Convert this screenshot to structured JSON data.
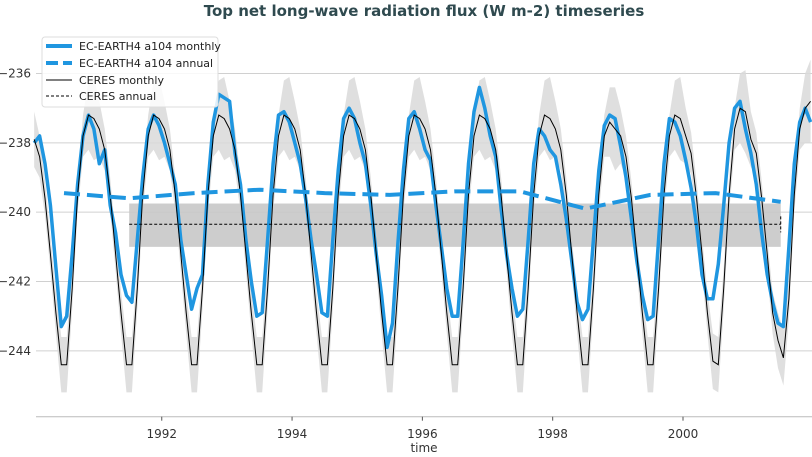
{
  "chart_data": {
    "type": "line",
    "title": "Top net long-wave radiation flux (W m-2) timeseries",
    "xlabel": "time",
    "ylabel": "",
    "xlim": [
      1990.07,
      2001.98
    ],
    "ylim": [
      -245.9,
      -234.6
    ],
    "grid": "horizontal",
    "legend_placement": "top-left",
    "x_ticks": [
      "1992",
      "1994",
      "1996",
      "1998",
      "2000"
    ],
    "y_ticks": [
      "-236",
      "-238",
      "-240",
      "-242",
      "-244"
    ],
    "colors": {
      "ec_earth": "#1f96e0",
      "ceres": "#000000",
      "band": "#d9d9d9",
      "annual_band": "#c8c8c8",
      "title": "#2f4a4f"
    },
    "legend": [
      "EC-EARTH4 a104 monthly",
      "EC-EARTH4 a104 annual",
      "CERES monthly",
      "CERES annual"
    ],
    "start_year": 1990,
    "ec_earth_monthly": [
      [
        -238.0,
        -237.8,
        -238.6,
        -239.8,
        -241.6,
        -243.3,
        -243.0,
        -241.2,
        -239.2,
        -237.8,
        -237.2,
        -237.6
      ],
      [
        -238.6,
        -238.2,
        -239.8,
        -240.6,
        -241.8,
        -242.4,
        -242.6,
        -240.8,
        -239.0,
        -237.6,
        -237.2,
        -237.5
      ],
      [
        -238.0,
        -238.6,
        -239.2,
        -240.8,
        -241.8,
        -242.8,
        -242.2,
        -241.8,
        -239.2,
        -237.4,
        -236.6,
        -236.7
      ],
      [
        -236.8,
        -238.3,
        -239.2,
        -240.8,
        -242.0,
        -243.0,
        -242.9,
        -240.8,
        -238.6,
        -237.2,
        -237.1,
        -237.4
      ],
      [
        -238.0,
        -238.6,
        -239.6,
        -240.8,
        -241.8,
        -242.9,
        -243.0,
        -240.8,
        -238.8,
        -237.3,
        -237.0,
        -237.3
      ],
      [
        -238.0,
        -238.6,
        -239.8,
        -241.2,
        -242.4,
        -243.9,
        -243.2,
        -240.9,
        -238.8,
        -237.3,
        -237.1,
        -237.6
      ],
      [
        -238.2,
        -238.5,
        -239.8,
        -241.0,
        -242.2,
        -243.0,
        -243.0,
        -240.9,
        -238.6,
        -237.1,
        -236.4,
        -237.0
      ],
      [
        -237.8,
        -238.4,
        -239.9,
        -241.2,
        -242.2,
        -243.0,
        -242.8,
        -240.8,
        -238.6,
        -237.6,
        -237.8,
        -238.2
      ],
      [
        -238.4,
        -239.2,
        -240.2,
        -241.4,
        -242.6,
        -243.1,
        -242.8,
        -240.8,
        -238.8,
        -237.5,
        -237.2,
        -237.3
      ],
      [
        -238.1,
        -239.0,
        -240.2,
        -241.4,
        -242.4,
        -243.1,
        -243.0,
        -240.8,
        -238.6,
        -237.3,
        -237.4,
        -237.8
      ],
      [
        -238.5,
        -239.3,
        -240.4,
        -241.8,
        -242.5,
        -242.5,
        -241.5,
        -239.8,
        -238.0,
        -237.0,
        -236.8,
        -237.6
      ],
      [
        -238.3,
        -239.2,
        -240.6,
        -241.8,
        -242.6,
        -243.2,
        -243.3,
        -241.0,
        -238.6,
        -237.4,
        -237.0,
        -237.4
      ]
    ],
    "ceres_monthly": [
      [
        -237.9,
        -238.4,
        -239.6,
        -241.2,
        -242.9,
        -244.4,
        -244.4,
        -242.2,
        -239.5,
        -237.8,
        -237.2,
        -237.3
      ],
      [
        -237.6,
        -238.2,
        -239.5,
        -241.2,
        -242.9,
        -244.4,
        -244.4,
        -242.2,
        -239.5,
        -237.8,
        -237.2,
        -237.3
      ],
      [
        -237.6,
        -238.2,
        -239.5,
        -241.2,
        -242.9,
        -244.4,
        -244.4,
        -242.2,
        -239.5,
        -237.8,
        -237.2,
        -237.3
      ],
      [
        -237.6,
        -238.2,
        -239.5,
        -241.2,
        -242.9,
        -244.4,
        -244.4,
        -242.2,
        -239.5,
        -237.8,
        -237.2,
        -237.3
      ],
      [
        -237.6,
        -238.2,
        -239.5,
        -241.2,
        -242.9,
        -244.4,
        -244.4,
        -242.2,
        -239.5,
        -237.8,
        -237.2,
        -237.3
      ],
      [
        -237.6,
        -238.2,
        -239.5,
        -241.2,
        -242.9,
        -244.4,
        -244.4,
        -242.2,
        -239.5,
        -237.8,
        -237.2,
        -237.3
      ],
      [
        -237.6,
        -238.2,
        -239.5,
        -241.2,
        -242.9,
        -244.4,
        -244.4,
        -242.2,
        -239.5,
        -237.8,
        -237.2,
        -237.3
      ],
      [
        -237.6,
        -238.2,
        -239.5,
        -241.2,
        -242.9,
        -244.4,
        -244.4,
        -242.2,
        -239.5,
        -237.8,
        -237.2,
        -237.3
      ],
      [
        -237.6,
        -238.2,
        -239.5,
        -241.2,
        -242.9,
        -244.4,
        -244.4,
        -242.2,
        -239.5,
        -237.8,
        -237.4,
        -237.6
      ],
      [
        -237.8,
        -238.4,
        -239.6,
        -241.2,
        -242.9,
        -244.4,
        -244.4,
        -242.2,
        -239.5,
        -237.8,
        -237.2,
        -237.3
      ],
      [
        -237.8,
        -238.3,
        -239.6,
        -241.2,
        -242.9,
        -244.3,
        -244.4,
        -242.2,
        -239.5,
        -237.6,
        -237.0,
        -237.1
      ],
      [
        -237.9,
        -238.3,
        -239.6,
        -241.2,
        -242.9,
        -243.7,
        -244.2,
        -242.5,
        -239.5,
        -237.6,
        -237.0,
        -236.8
      ]
    ],
    "ceres_monthly_spread": [
      0.8,
      0.6,
      0.5,
      0.5,
      0.6,
      0.8,
      0.8,
      0.6,
      0.5,
      0.6,
      1.0,
      1.2
    ],
    "ec_earth_annual": {
      "x": [
        1990.5,
        1991.5,
        1992.5,
        1993.5,
        1994.5,
        1995.5,
        1996.5,
        1997.5,
        1998.5,
        1999.5,
        2000.5,
        2001.5
      ],
      "y": [
        -239.45,
        -239.6,
        -239.45,
        -239.35,
        -239.45,
        -239.5,
        -239.4,
        -239.4,
        -239.9,
        -239.5,
        -239.45,
        -239.7
      ]
    },
    "ceres_annual": {
      "x": [
        1991.5,
        2001.5
      ],
      "y": -240.35,
      "band": [
        -239.75,
        -241.0
      ]
    }
  }
}
